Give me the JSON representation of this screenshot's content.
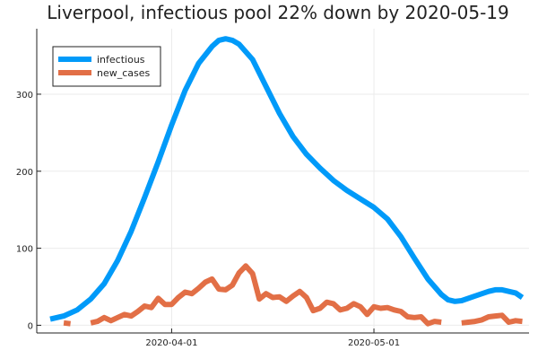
{
  "chart_data": {
    "type": "line",
    "title": "Liverpool, infectious pool 22% down by 2020-05-19",
    "xlabel": "",
    "ylabel": "",
    "x_axis": {
      "type": "date",
      "range": [
        "2020-03-12",
        "2020-05-24"
      ],
      "ticks": [
        "2020-04-01",
        "2020-05-01"
      ]
    },
    "y_axis": {
      "range": [
        -10,
        385
      ],
      "ticks": [
        0,
        100,
        200,
        300
      ]
    },
    "grid": true,
    "legend": {
      "position": "top-left"
    },
    "series": [
      {
        "name": "infectious",
        "color": "#009af9",
        "points": [
          [
            "2020-03-14",
            8
          ],
          [
            "2020-03-16",
            12
          ],
          [
            "2020-03-18",
            20
          ],
          [
            "2020-03-20",
            34
          ],
          [
            "2020-03-22",
            54
          ],
          [
            "2020-03-24",
            84
          ],
          [
            "2020-03-26",
            122
          ],
          [
            "2020-03-28",
            166
          ],
          [
            "2020-03-30",
            212
          ],
          [
            "2020-04-01",
            260
          ],
          [
            "2020-04-03",
            305
          ],
          [
            "2020-04-05",
            340
          ],
          [
            "2020-04-07",
            362
          ],
          [
            "2020-04-08",
            370
          ],
          [
            "2020-04-09",
            372
          ],
          [
            "2020-04-10",
            370
          ],
          [
            "2020-04-11",
            365
          ],
          [
            "2020-04-13",
            345
          ],
          [
            "2020-04-15",
            310
          ],
          [
            "2020-04-17",
            275
          ],
          [
            "2020-04-19",
            245
          ],
          [
            "2020-04-21",
            222
          ],
          [
            "2020-04-23",
            204
          ],
          [
            "2020-04-25",
            188
          ],
          [
            "2020-04-27",
            175
          ],
          [
            "2020-04-29",
            164
          ],
          [
            "2020-05-01",
            153
          ],
          [
            "2020-05-03",
            138
          ],
          [
            "2020-05-05",
            115
          ],
          [
            "2020-05-07",
            87
          ],
          [
            "2020-05-09",
            60
          ],
          [
            "2020-05-11",
            40
          ],
          [
            "2020-05-12",
            33
          ],
          [
            "2020-05-13",
            31
          ],
          [
            "2020-05-14",
            32
          ],
          [
            "2020-05-16",
            38
          ],
          [
            "2020-05-18",
            44
          ],
          [
            "2020-05-19",
            46
          ],
          [
            "2020-05-20",
            46
          ],
          [
            "2020-05-22",
            42
          ],
          [
            "2020-05-23",
            36
          ]
        ]
      },
      {
        "name": "new_cases",
        "color": "#e26f46",
        "points": [
          [
            "2020-03-16",
            3
          ],
          [
            "2020-03-17",
            2
          ],
          [
            "2020-03-18",
            null
          ],
          [
            "2020-03-19",
            null
          ],
          [
            "2020-03-20",
            3
          ],
          [
            "2020-03-21",
            5
          ],
          [
            "2020-03-22",
            10
          ],
          [
            "2020-03-23",
            6
          ],
          [
            "2020-03-24",
            10
          ],
          [
            "2020-03-25",
            14
          ],
          [
            "2020-03-26",
            12
          ],
          [
            "2020-03-27",
            18
          ],
          [
            "2020-03-28",
            25
          ],
          [
            "2020-03-29",
            23
          ],
          [
            "2020-03-30",
            35
          ],
          [
            "2020-03-31",
            27
          ],
          [
            "2020-04-01",
            27
          ],
          [
            "2020-04-02",
            36
          ],
          [
            "2020-04-03",
            43
          ],
          [
            "2020-04-04",
            41
          ],
          [
            "2020-04-05",
            48
          ],
          [
            "2020-04-06",
            56
          ],
          [
            "2020-04-07",
            60
          ],
          [
            "2020-04-08",
            47
          ],
          [
            "2020-04-09",
            46
          ],
          [
            "2020-04-10",
            52
          ],
          [
            "2020-04-11",
            68
          ],
          [
            "2020-04-12",
            77
          ],
          [
            "2020-04-13",
            67
          ],
          [
            "2020-04-14",
            34
          ],
          [
            "2020-04-15",
            41
          ],
          [
            "2020-04-16",
            36
          ],
          [
            "2020-04-17",
            37
          ],
          [
            "2020-04-18",
            31
          ],
          [
            "2020-04-19",
            38
          ],
          [
            "2020-04-20",
            44
          ],
          [
            "2020-04-21",
            36
          ],
          [
            "2020-04-22",
            19
          ],
          [
            "2020-04-23",
            22
          ],
          [
            "2020-04-24",
            30
          ],
          [
            "2020-04-25",
            28
          ],
          [
            "2020-04-26",
            20
          ],
          [
            "2020-04-27",
            22
          ],
          [
            "2020-04-28",
            28
          ],
          [
            "2020-04-29",
            24
          ],
          [
            "2020-04-30",
            14
          ],
          [
            "2020-05-01",
            24
          ],
          [
            "2020-05-02",
            22
          ],
          [
            "2020-05-03",
            23
          ],
          [
            "2020-05-04",
            20
          ],
          [
            "2020-05-05",
            18
          ],
          [
            "2020-05-06",
            11
          ],
          [
            "2020-05-07",
            10
          ],
          [
            "2020-05-08",
            11
          ],
          [
            "2020-05-09",
            2
          ],
          [
            "2020-05-10",
            5
          ],
          [
            "2020-05-11",
            4
          ],
          [
            "2020-05-12",
            null
          ],
          [
            "2020-05-13",
            null
          ],
          [
            "2020-05-14",
            3
          ],
          [
            "2020-05-15",
            4
          ],
          [
            "2020-05-16",
            5
          ],
          [
            "2020-05-17",
            7
          ],
          [
            "2020-05-18",
            11
          ],
          [
            "2020-05-19",
            12
          ],
          [
            "2020-05-20",
            13
          ],
          [
            "2020-05-21",
            4
          ],
          [
            "2020-05-22",
            6
          ],
          [
            "2020-05-23",
            5
          ]
        ]
      }
    ]
  }
}
